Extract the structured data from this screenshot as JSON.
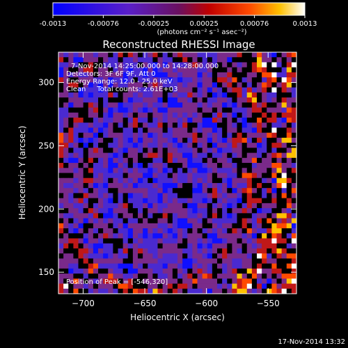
{
  "colorbar": {
    "ticks": [
      "-0.0013",
      "-0.00076",
      "-0.00025",
      "0.00025",
      "0.00076",
      "0.0013"
    ],
    "units": "(photons cm⁻² s⁻¹ asec⁻²)"
  },
  "chart_data": {
    "type": "heatmap",
    "title": "Reconstructed RHESSI Image",
    "xlabel": "Heliocentric X (arcsec)",
    "ylabel": "Heliocentric Y (arcsec)",
    "xlim": [
      -720,
      -527
    ],
    "ylim": [
      133,
      324
    ],
    "xticks": [
      -700,
      -650,
      -600,
      -550
    ],
    "yticks": [
      150,
      200,
      250,
      300
    ],
    "value_range": [
      -0.0013,
      0.0013
    ],
    "colormap": "blue-purple-red-yellow-white",
    "colors": [
      "#1010ff",
      "#4a2ad0",
      "#7a2a8a",
      "#c01818",
      "#ff4a00",
      "#ffc000",
      "#ffffff"
    ],
    "peak": [
      -546,
      320
    ],
    "annotations": [
      "7-Nov-2014 14:25:00.000 to 14:28:00.000",
      "Detectors: 3F 6F 9F, Att 0",
      "Energy Range: 12.0 - 25.0 keV",
      "Clean     Total counts: 2.61E+03"
    ],
    "peak_label": "Position of Peak = [-546,320]"
  },
  "footer": {
    "timestamp": "17-Nov-2014 13:32"
  }
}
